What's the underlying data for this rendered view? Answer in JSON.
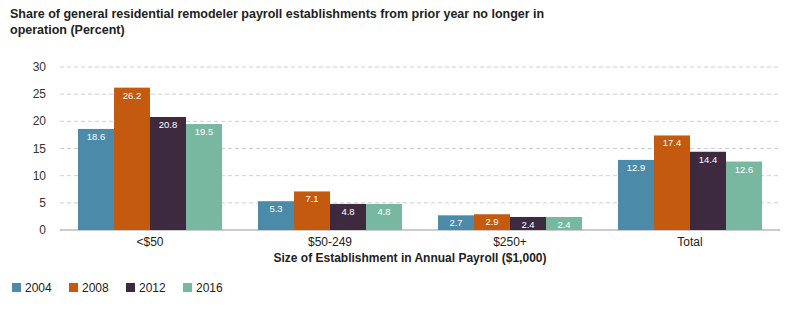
{
  "chart_data": {
    "type": "bar",
    "title": "Share of general residential remodeler payroll establishments from prior year no longer in operation (Percent)",
    "x_label": "Size of Establishment in Annual Payroll ($1,000)",
    "categories": [
      "<$50",
      "$50-249",
      "$250+",
      "Total"
    ],
    "series": [
      {
        "name": "2004",
        "color": "#4b8aa8",
        "values": [
          18.6,
          5.3,
          2.7,
          12.9
        ]
      },
      {
        "name": "2008",
        "color": "#c45a10",
        "values": [
          26.2,
          7.1,
          2.9,
          17.4
        ]
      },
      {
        "name": "2012",
        "color": "#3e2a3f",
        "values": [
          20.8,
          4.8,
          2.4,
          14.4
        ]
      },
      {
        "name": "2016",
        "color": "#79b8a0",
        "values": [
          19.5,
          4.8,
          2.4,
          12.6
        ]
      }
    ],
    "ylim": [
      0,
      30
    ],
    "yticks": [
      0,
      5,
      10,
      15,
      20,
      25,
      30
    ],
    "grid": true,
    "legend": "bottom-left",
    "data_labels": true
  }
}
